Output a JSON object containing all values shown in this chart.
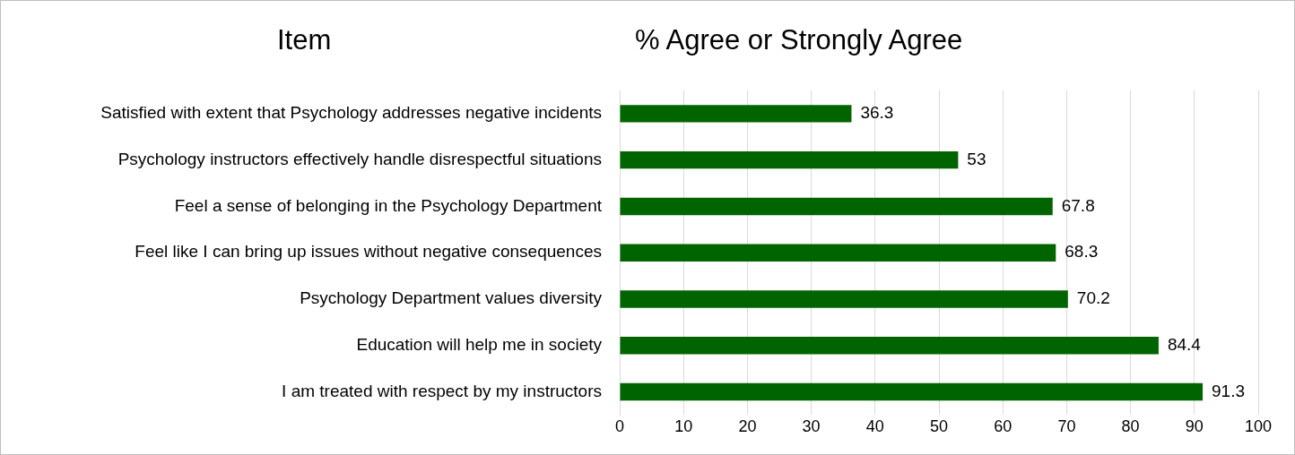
{
  "chart_data": {
    "type": "bar",
    "orientation": "horizontal",
    "title": "% Agree or Strongly Agree",
    "ylabel": "Item",
    "categories": [
      "Satisfied with extent that Psychology addresses negative incidents",
      "Psychology instructors effectively handle disrespectful situations",
      "Feel a sense of belonging in the Psychology Department",
      "Feel like I can bring up issues without negative consequences",
      "Psychology Department values diversity",
      "Education will help me in society",
      "I am treated with respect by my instructors"
    ],
    "values": [
      36.3,
      53,
      67.8,
      68.3,
      70.2,
      84.4,
      91.3
    ],
    "color": "#006400",
    "xlim": [
      0,
      100
    ],
    "xticks": [
      0,
      10,
      20,
      30,
      40,
      50,
      60,
      70,
      80,
      90,
      100
    ],
    "grid": "x",
    "legend": false,
    "data_labels": true
  }
}
